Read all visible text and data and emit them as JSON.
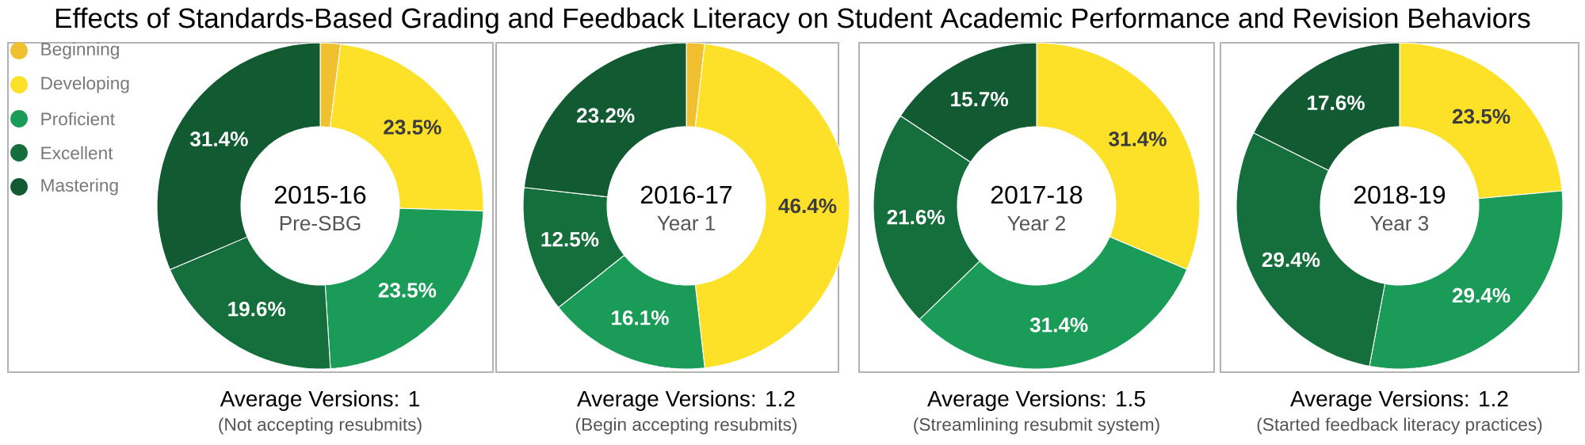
{
  "chart_data": [
    {
      "type": "other",
      "title": "Effects of Standards-Based Grading and Feedback Literacy on Student Academic Performance and Revision Behaviors"
    },
    {
      "type": "donut",
      "title": "2015-16",
      "subtitle": "Pre-SBG",
      "categories": [
        "Beginning",
        "Developing",
        "Proficient",
        "Excellent",
        "Mastering"
      ],
      "values": [
        2.0,
        23.5,
        23.5,
        19.6,
        31.4
      ],
      "colors": [
        "#f0c030",
        "#fde128",
        "#1a9c58",
        "#146f3c",
        "#115a32"
      ],
      "value_labels": [
        null,
        "23.5%",
        "23.5%",
        "19.6%",
        "31.4%"
      ],
      "legend": "left",
      "annotations": [
        "Average Versions: 1",
        "(Not accepting resubmits)"
      ]
    },
    {
      "type": "donut",
      "title": "2016-17",
      "subtitle": "Year 1",
      "categories": [
        null,
        null,
        null,
        null,
        null
      ],
      "values": [
        1.8,
        46.4,
        16.1,
        12.5,
        23.2
      ],
      "colors": [
        "#f0c030",
        "#fde128",
        "#1a9c58",
        "#146f3c",
        "#115a32"
      ],
      "value_labels": [
        null,
        "46.4%",
        "16.1%",
        "12.5%",
        "23.2%"
      ],
      "annotations": [
        "Average Versions: 1.2",
        "(Begin accepting resubmits)"
      ]
    },
    {
      "type": "donut",
      "title": "2017-18",
      "subtitle": "Year 2",
      "categories": [
        null,
        null,
        null,
        null,
        null
      ],
      "values": [
        0,
        31.4,
        31.4,
        21.6,
        15.7
      ],
      "colors": [
        "#f0c030",
        "#fde128",
        "#1a9c58",
        "#146f3c",
        "#115a32"
      ],
      "value_labels": [
        null,
        "31.4%",
        "31.4%",
        "21.6%",
        "15.7%"
      ],
      "annotations": [
        "Average Versions: 1.5",
        "(Streamlining resubmit system)"
      ]
    },
    {
      "type": "donut",
      "title": "2018-19",
      "subtitle": "Year 3",
      "categories": [
        null,
        null,
        null,
        null,
        null
      ],
      "values": [
        0,
        23.5,
        29.4,
        29.4,
        17.6
      ],
      "colors": [
        "#f0c030",
        "#fde128",
        "#1a9c58",
        "#146f3c",
        "#115a32"
      ],
      "value_labels": [
        null,
        "23.5%",
        "29.4%",
        "29.4%",
        "17.6%"
      ],
      "annotations": [
        "Average Versions: 1.2",
        "(Started feedback literacy practices)"
      ]
    }
  ]
}
